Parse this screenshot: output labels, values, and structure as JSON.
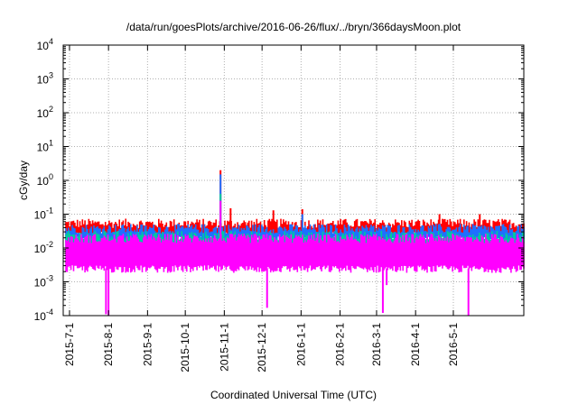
{
  "chart_data": {
    "type": "line",
    "title": "/data/run/goesPlots/archive/2016-06-26/flux/../bryn/366daysMoon.plot",
    "xlabel": "Coordinated Universal Time (UTC)",
    "ylabel": "cGy/day",
    "yscale": "log",
    "ylim": [
      0.0001,
      10000
    ],
    "xlim": [
      "2015-06-26",
      "2016-06-26"
    ],
    "grid": true,
    "legend": "none",
    "y_ticks": [
      {
        "base": "10",
        "exp": "-4"
      },
      {
        "base": "10",
        "exp": "-3"
      },
      {
        "base": "10",
        "exp": "-2"
      },
      {
        "base": "10",
        "exp": "-1"
      },
      {
        "base": "10",
        "exp": "0"
      },
      {
        "base": "10",
        "exp": "1"
      },
      {
        "base": "10",
        "exp": "2"
      },
      {
        "base": "10",
        "exp": "3"
      },
      {
        "base": "10",
        "exp": "4"
      }
    ],
    "x_ticks": [
      "2015-7-1",
      "2015-8-1",
      "2015-9-1",
      "2015-10-1",
      "2015-11-1",
      "2015-12-1",
      "2016-1-1",
      "2016-2-1",
      "2016-3-1",
      "2016-4-1",
      "2016-5-1"
    ],
    "series": [
      {
        "color": "#ff0000",
        "baseline_upper": 0.05,
        "baseline_lower": 0.025,
        "spikes": [
          {
            "x": "2015-10-29",
            "y": 2.0
          },
          {
            "x": "2015-11-06",
            "y": 0.15
          },
          {
            "x": "2015-12-10",
            "y": 0.13
          },
          {
            "x": "2016-01-02",
            "y": 0.14
          },
          {
            "x": "2016-04-20",
            "y": 0.1
          },
          {
            "x": "2016-05-22",
            "y": 0.1
          }
        ]
      },
      {
        "color": "#1f6fff",
        "baseline_upper": 0.035,
        "baseline_lower": 0.018,
        "spikes": [
          {
            "x": "2015-10-29",
            "y": 1.5
          },
          {
            "x": "2016-01-02",
            "y": 0.1
          }
        ]
      },
      {
        "color": "#00c8a0",
        "baseline_upper": 0.022,
        "baseline_lower": 0.012,
        "spikes": [
          {
            "x": "2015-10-29",
            "y": 0.4
          }
        ]
      },
      {
        "color": "#ff00ff",
        "baseline_upper": 0.018,
        "baseline_lower": 0.0025,
        "spikes": [
          {
            "x": "2015-10-29",
            "y": 0.25
          }
        ],
        "dips": [
          {
            "x": "2015-07-30",
            "y": 0.00011
          },
          {
            "x": "2015-08-01",
            "y": 0.0001
          },
          {
            "x": "2015-12-05",
            "y": 0.00017
          },
          {
            "x": "2016-03-06",
            "y": 0.00012
          },
          {
            "x": "2016-03-09",
            "y": 0.0008
          },
          {
            "x": "2016-05-13",
            "y": 0.0001
          }
        ]
      }
    ]
  }
}
